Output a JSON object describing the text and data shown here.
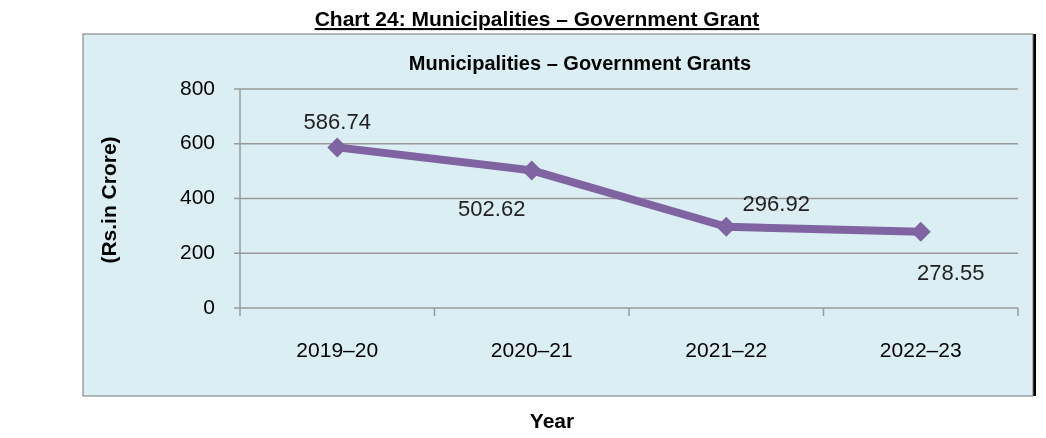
{
  "chart_data": {
    "type": "line",
    "title": "Chart 24: Municipalities – Government Grant",
    "subtitle": "Municipalities – Government Grants",
    "xlabel": "Year",
    "ylabel": "(Rs.in Crore)",
    "categories": [
      "2019–20",
      "2020–21",
      "2021–22",
      "2022–23"
    ],
    "series": [
      {
        "color": "#8064a2",
        "values": [
          586.74,
          502.62,
          296.92,
          278.55
        ]
      }
    ],
    "ylim": [
      0,
      800
    ],
    "yticks": [
      0,
      200,
      400,
      600,
      800
    ],
    "grid": "y",
    "marker": "diamond",
    "line_style": "solid",
    "data_labels": true
  }
}
